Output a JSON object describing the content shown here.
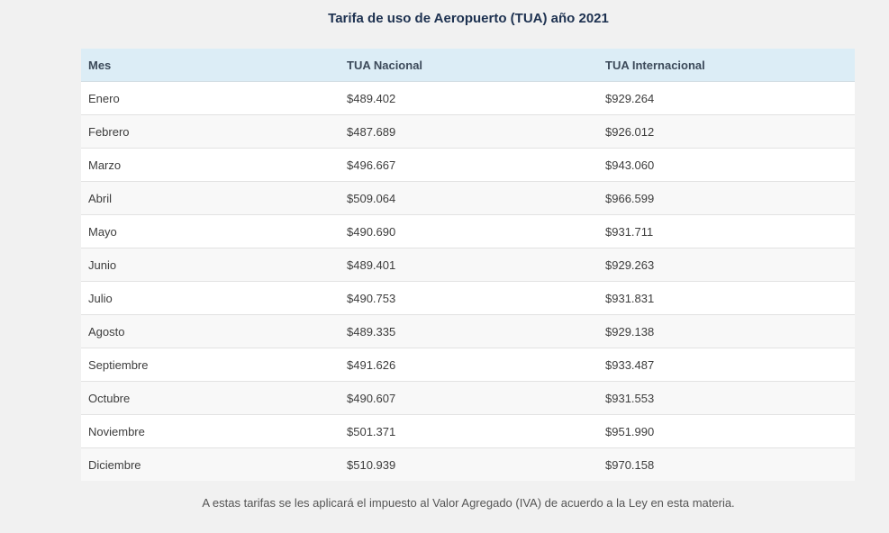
{
  "title": "Tarifa de uso de Aeropuerto (TUA) año 2021",
  "table": {
    "headers": [
      "Mes",
      "TUA Nacional",
      "TUA Internacional"
    ],
    "rows": [
      [
        "Enero",
        "$489.402",
        "$929.264"
      ],
      [
        "Febrero",
        "$487.689",
        "$926.012"
      ],
      [
        "Marzo",
        "$496.667",
        "$943.060"
      ],
      [
        "Abril",
        "$509.064",
        "$966.599"
      ],
      [
        "Mayo",
        "$490.690",
        "$931.711"
      ],
      [
        "Junio",
        "$489.401",
        "$929.263"
      ],
      [
        "Julio",
        "$490.753",
        "$931.831"
      ],
      [
        "Agosto",
        "$489.335",
        "$929.138"
      ],
      [
        "Septiembre",
        "$491.626",
        "$933.487"
      ],
      [
        "Octubre",
        "$490.607",
        "$931.553"
      ],
      [
        "Noviembre",
        "$501.371",
        "$951.990"
      ],
      [
        "Diciembre",
        "$510.939",
        "$970.158"
      ]
    ]
  },
  "footnote": "A estas tarifas se les aplicará el impuesto al Valor Agregado (IVA) de acuerdo a la Ley en esta materia."
}
